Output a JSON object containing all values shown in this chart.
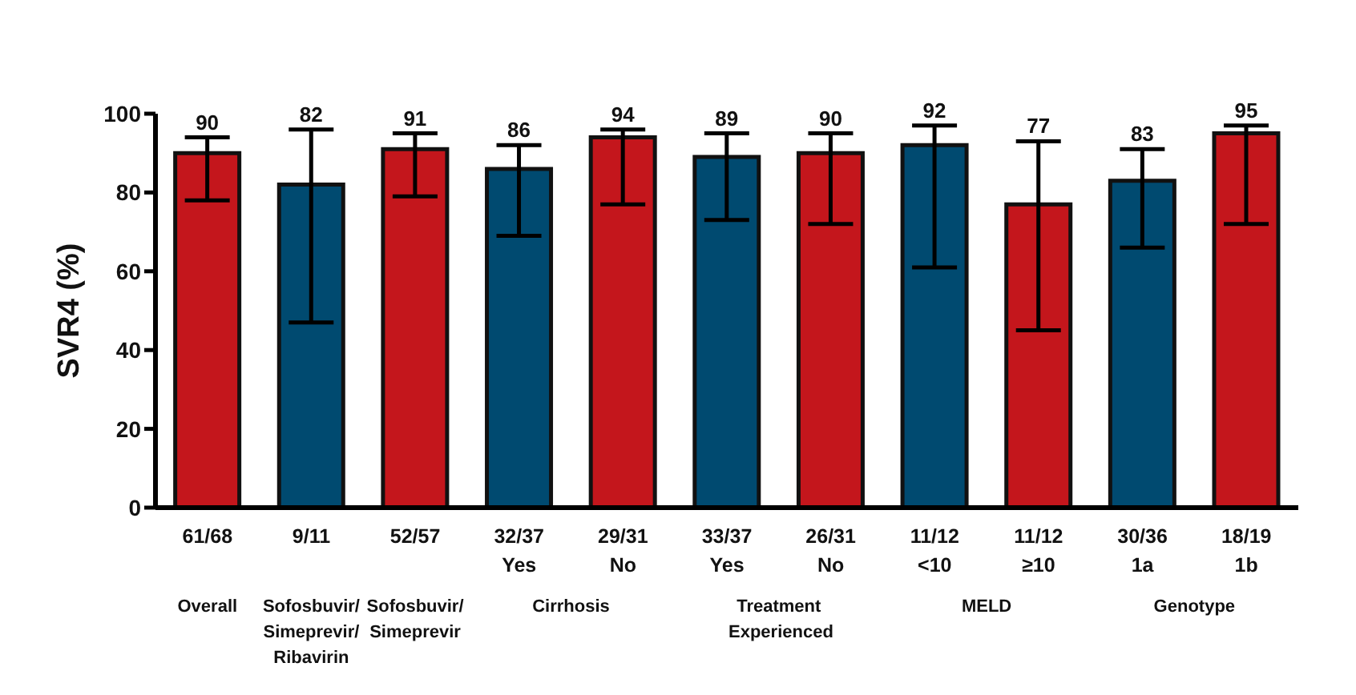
{
  "chart_data": {
    "type": "bar",
    "ylabel": "SVR4 (%)",
    "categories": [
      "61/68",
      "9/11",
      "52/57",
      "32/37\nYes",
      "29/31\nNo",
      "33/37\nYes",
      "26/31\nNo",
      "11/12\n<10",
      "11/12\n≥10",
      "30/36\n1a",
      "18/19\n1b"
    ],
    "values": [
      90,
      82,
      91,
      86,
      94,
      89,
      90,
      92,
      77,
      83,
      95
    ],
    "colors": [
      "#c4161c",
      "#004a70",
      "#c4161c",
      "#004a70",
      "#c4161c",
      "#004a70",
      "#c4161c",
      "#004a70",
      "#c4161c",
      "#004a70",
      "#c4161c"
    ],
    "errors": [
      [
        78,
        94
      ],
      [
        47,
        96
      ],
      [
        79,
        95
      ],
      [
        69,
        92
      ],
      [
        77,
        96
      ],
      [
        73,
        95
      ],
      [
        72,
        95
      ],
      [
        61,
        97
      ],
      [
        45,
        93
      ],
      [
        66,
        91
      ],
      [
        72,
        97
      ]
    ],
    "data_labels": true,
    "ylim": [
      0,
      100
    ],
    "yticks": [
      0,
      20,
      40,
      60,
      80,
      100
    ],
    "grid": false,
    "legend": false,
    "annotations": [
      "Overall",
      "Sofosbuvir/ Simeprevir/ Ribavirin",
      "Sofosbuvir/ Simeprevir",
      "Cirrhosis",
      "Treatment Experienced",
      "MELD",
      "Genotype"
    ]
  }
}
